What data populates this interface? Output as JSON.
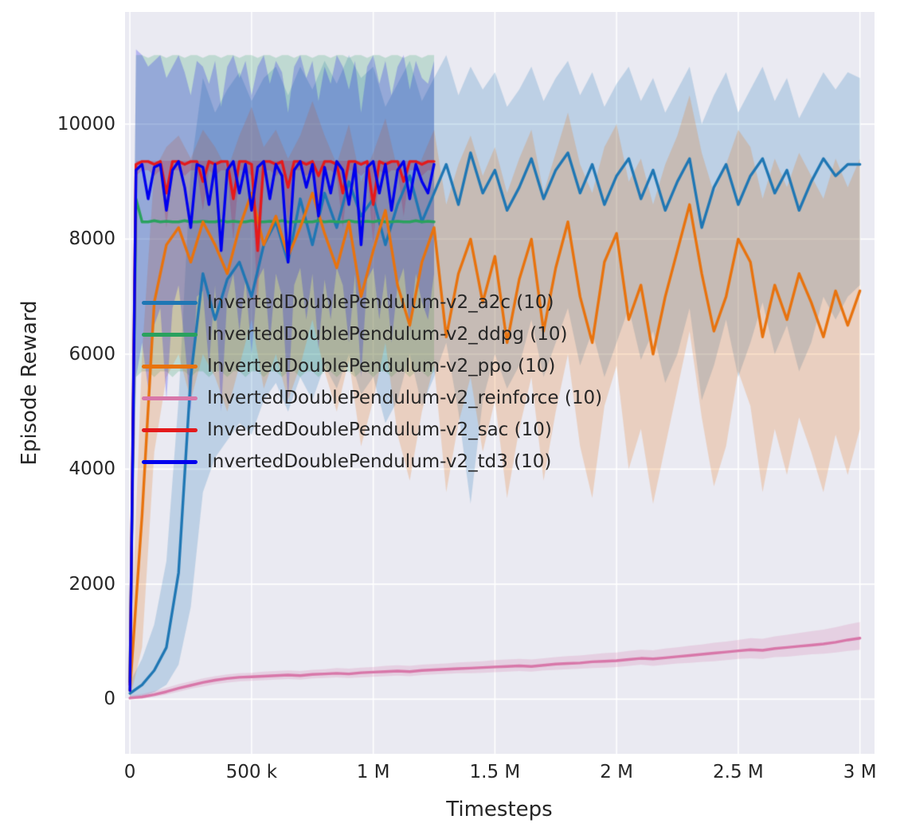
{
  "figure": {
    "background": "#ffffff",
    "plot_background": "#eaeaf2",
    "grid_color": "#ffffff",
    "text_color": "#262626"
  },
  "chart_data": {
    "type": "line",
    "title": "",
    "xlabel": "Timesteps",
    "ylabel": "Episode Reward",
    "x_unit": "timesteps (millions)",
    "xlim": [
      -0.02,
      3.06
    ],
    "ylim": [
      -950,
      11950
    ],
    "grid": true,
    "legend_position": "upper-left-inside",
    "xticks": {
      "values": [
        0,
        0.5,
        1,
        1.5,
        2,
        2.5,
        3
      ],
      "labels": [
        "0",
        "500 k",
        "1 M",
        "1.5 M",
        "2 M",
        "2.5 M",
        "3 M"
      ]
    },
    "yticks": {
      "values": [
        0,
        2000,
        4000,
        6000,
        8000,
        10000
      ],
      "labels": [
        "0",
        "2000",
        "4000",
        "6000",
        "8000",
        "10000"
      ]
    },
    "series": [
      {
        "name": "a2c",
        "label": "InvertedDoublePendulum-v2_a2c (10)",
        "color": "#1f77b4",
        "x_max": 3.0,
        "y": [
          100,
          250,
          500,
          900,
          2200,
          5600,
          7400,
          6600,
          7300,
          7600,
          7000,
          7900,
          8300,
          7600,
          8700,
          7900,
          8800,
          8200,
          9000,
          8400,
          8700,
          7900,
          8600,
          9100,
          8300,
          8800,
          9300,
          8600,
          9500,
          8800,
          9200,
          8500,
          8900,
          9400,
          8700,
          9200,
          9500,
          8800,
          9300,
          8600,
          9100,
          9400,
          8700,
          9200,
          8500,
          9000,
          9400,
          8200,
          8900,
          9300,
          8600,
          9100,
          9400,
          8800,
          9200,
          8500,
          9000,
          9400,
          9100,
          9300,
          9300
        ],
        "band_lo": [
          0,
          50,
          120,
          250,
          600,
          1600,
          3600,
          4200,
          4500,
          4800,
          4600,
          5200,
          5500,
          5000,
          5600,
          5200,
          5800,
          5400,
          6000,
          5300,
          5600,
          4800,
          5200,
          6000,
          5100,
          5600,
          6200,
          5000,
          3400,
          5200,
          6000,
          5400,
          5800,
          6600,
          5600,
          6200,
          6800,
          5800,
          6400,
          5600,
          6200,
          6800,
          5900,
          6400,
          5500,
          6000,
          6800,
          5200,
          5800,
          6600,
          5600,
          6200,
          6900,
          6000,
          6500,
          5700,
          6200,
          7000,
          6600,
          7000,
          7200
        ],
        "band_hi": [
          300,
          700,
          1300,
          2400,
          5200,
          9200,
          10800,
          10200,
          10600,
          10900,
          10400,
          10800,
          11000,
          10500,
          11000,
          10600,
          11100,
          10700,
          11200,
          10800,
          11000,
          10300,
          10700,
          11100,
          10400,
          10800,
          11200,
          10500,
          11000,
          10600,
          10900,
          10300,
          10600,
          11000,
          10400,
          10800,
          11100,
          10500,
          10900,
          10300,
          10700,
          11000,
          10400,
          10800,
          10200,
          10600,
          11000,
          10000,
          10500,
          10900,
          10200,
          10600,
          11000,
          10400,
          10800,
          10100,
          10500,
          10900,
          10600,
          10900,
          10800
        ]
      },
      {
        "name": "ddpg",
        "label": "InvertedDoublePendulum-v2_ddpg (10)",
        "color": "#2aa15e",
        "x_max": 1.25,
        "y": [
          300,
          8700,
          8300,
          8300,
          8320,
          8300,
          8310,
          8300,
          8300,
          8320,
          8300,
          8300,
          8310,
          8300,
          8300,
          8320,
          8300,
          8310,
          8300,
          8300,
          8320,
          8300,
          8300,
          8310,
          8300,
          8320,
          8300,
          8300,
          8310,
          8300,
          8300,
          8320,
          8300,
          8310,
          8300,
          8300,
          8320,
          8300,
          8300,
          8310,
          8300,
          8320,
          8300,
          8300,
          8310,
          8300,
          8300,
          8320,
          8300,
          8310,
          8300
        ],
        "band_lo": [
          0,
          5600,
          5700,
          5700,
          5600,
          5700,
          5700,
          5600,
          5700,
          5700,
          5600,
          5700,
          5700,
          5600,
          5700,
          5700,
          5600,
          5700,
          5700,
          5600,
          5700,
          5700,
          5600,
          5700,
          5700,
          5600,
          5700,
          5700,
          5600,
          5700,
          5700,
          5600,
          5700,
          5700,
          5600,
          5700,
          5700,
          5600,
          5700,
          5700,
          5600,
          5700,
          5700,
          5600,
          5700,
          5700,
          5600,
          5700,
          5700,
          5600,
          5700
        ],
        "band_hi": [
          900,
          11200,
          11200,
          11150,
          11200,
          11200,
          11150,
          11200,
          11200,
          11150,
          11200,
          11200,
          11150,
          11200,
          11200,
          11150,
          11200,
          11200,
          11150,
          11200,
          11200,
          11150,
          11200,
          11200,
          11150,
          11200,
          11200,
          11150,
          11200,
          11200,
          11150,
          11200,
          11200,
          11150,
          11200,
          11200,
          11150,
          11200,
          11200,
          11150,
          11200,
          11200,
          11150,
          11200,
          11200,
          11150,
          11200,
          11200,
          11150,
          11200,
          11200
        ]
      },
      {
        "name": "ppo",
        "label": "InvertedDoublePendulum-v2_ppo (10)",
        "color": "#e8730e",
        "x_max": 3.0,
        "y": [
          150,
          3200,
          6900,
          7900,
          8200,
          7600,
          8300,
          7900,
          7400,
          8200,
          8800,
          7900,
          8400,
          7700,
          8200,
          8800,
          8100,
          7500,
          8300,
          7000,
          7800,
          8500,
          7200,
          6500,
          7600,
          8200,
          6300,
          7400,
          8000,
          6900,
          7700,
          6200,
          7300,
          8000,
          6400,
          7500,
          8300,
          7000,
          6200,
          7600,
          8100,
          6600,
          7200,
          6000,
          7000,
          7800,
          8600,
          7400,
          6400,
          7000,
          8000,
          7600,
          6300,
          7200,
          6600,
          7400,
          6900,
          6300,
          7100,
          6500,
          7100
        ],
        "band_lo": [
          0,
          900,
          4300,
          5600,
          6000,
          5200,
          6000,
          5600,
          5000,
          5800,
          6600,
          5400,
          6000,
          5200,
          5800,
          6600,
          5700,
          5000,
          5900,
          4400,
          5200,
          6200,
          4600,
          3800,
          5000,
          5800,
          3600,
          4800,
          5600,
          4300,
          5200,
          3500,
          4700,
          5600,
          3800,
          5000,
          6000,
          4400,
          3500,
          5100,
          5800,
          4000,
          4700,
          3400,
          4400,
          5400,
          6400,
          4900,
          3700,
          4400,
          5700,
          5100,
          3600,
          4700,
          3900,
          4900,
          4300,
          3600,
          4600,
          3900,
          4700
        ],
        "band_hi": [
          400,
          6000,
          9200,
          9600,
          9800,
          9400,
          9900,
          9600,
          9200,
          9800,
          10300,
          9600,
          9900,
          9400,
          9800,
          10400,
          9800,
          9300,
          10000,
          9000,
          9500,
          10100,
          9200,
          8700,
          9400,
          9900,
          8600,
          9300,
          9800,
          9100,
          9600,
          8800,
          9400,
          9900,
          8800,
          9500,
          10200,
          9300,
          8800,
          9600,
          10000,
          9000,
          9400,
          8600,
          9300,
          9800,
          10500,
          9500,
          8800,
          9300,
          9900,
          9600,
          8700,
          9400,
          8900,
          9500,
          9100,
          8700,
          9400,
          8900,
          9400
        ]
      },
      {
        "name": "reinforce",
        "label": "InvertedDoublePendulum-v2_reinforce (10)",
        "color": "#d877a9",
        "x_max": 3.0,
        "y": [
          20,
          40,
          80,
          130,
          190,
          240,
          290,
          330,
          360,
          380,
          390,
          400,
          410,
          420,
          410,
          430,
          440,
          450,
          440,
          460,
          470,
          480,
          490,
          480,
          500,
          510,
          520,
          530,
          540,
          550,
          560,
          570,
          580,
          570,
          590,
          610,
          620,
          630,
          650,
          660,
          670,
          690,
          710,
          700,
          720,
          740,
          760,
          780,
          800,
          820,
          840,
          860,
          850,
          880,
          900,
          920,
          940,
          960,
          990,
          1030,
          1060
        ],
        "band_lo": [
          0,
          10,
          40,
          80,
          130,
          180,
          220,
          260,
          290,
          310,
          320,
          330,
          340,
          350,
          340,
          360,
          370,
          380,
          370,
          380,
          390,
          400,
          410,
          400,
          420,
          430,
          440,
          450,
          450,
          460,
          470,
          480,
          490,
          480,
          500,
          510,
          520,
          530,
          540,
          550,
          560,
          580,
          600,
          580,
          600,
          620,
          630,
          650,
          660,
          680,
          700,
          710,
          700,
          730,
          740,
          760,
          780,
          790,
          810,
          840,
          860
        ],
        "band_hi": [
          60,
          90,
          140,
          200,
          260,
          310,
          360,
          400,
          430,
          450,
          460,
          480,
          490,
          500,
          490,
          510,
          520,
          540,
          530,
          550,
          560,
          580,
          590,
          580,
          600,
          610,
          620,
          640,
          650,
          660,
          680,
          690,
          700,
          690,
          710,
          730,
          750,
          760,
          780,
          800,
          810,
          840,
          860,
          850,
          880,
          900,
          930,
          950,
          980,
          1000,
          1030,
          1060,
          1050,
          1090,
          1120,
          1150,
          1180,
          1210,
          1250,
          1300,
          1340
        ]
      },
      {
        "name": "sac",
        "label": "InvertedDoublePendulum-v2_sac (10)",
        "color": "#e41a1c",
        "x_max": 1.25,
        "y": [
          250,
          9300,
          9350,
          9350,
          9300,
          9350,
          8800,
          9350,
          9350,
          9300,
          9350,
          9350,
          9000,
          9350,
          9300,
          9350,
          9350,
          8700,
          9350,
          9350,
          9300,
          7800,
          9350,
          9350,
          9300,
          9350,
          8900,
          9350,
          9350,
          9300,
          9350,
          9100,
          9350,
          9350,
          9300,
          8800,
          9350,
          9350,
          9300,
          9350,
          8600,
          9350,
          9300,
          9350,
          9350,
          9000,
          9350,
          9350,
          9300,
          9350,
          9350
        ],
        "band_lo": [
          0,
          9100,
          9200,
          9200,
          9100,
          9200,
          8200,
          9200,
          9200,
          9100,
          9200,
          9200,
          8500,
          9200,
          9100,
          9200,
          9200,
          8000,
          9200,
          9200,
          9100,
          6800,
          9200,
          9200,
          9100,
          9200,
          8300,
          9200,
          9200,
          9100,
          9200,
          8600,
          9200,
          9200,
          9100,
          8200,
          9200,
          9200,
          9100,
          9200,
          7900,
          9200,
          9100,
          9200,
          9200,
          8400,
          9200,
          9200,
          9100,
          9200,
          9200
        ],
        "band_hi": [
          800,
          9360,
          9360,
          9360,
          9360,
          9360,
          9360,
          9360,
          9360,
          9360,
          9360,
          9360,
          9360,
          9360,
          9360,
          9360,
          9360,
          9360,
          9360,
          9360,
          9360,
          9360,
          9360,
          9360,
          9360,
          9360,
          9360,
          9360,
          9360,
          9360,
          9360,
          9360,
          9360,
          9360,
          9360,
          9360,
          9360,
          9360,
          9360,
          9360,
          9360,
          9360,
          9360,
          9360,
          9360,
          9360,
          9360,
          9360,
          9360,
          9360,
          9360
        ]
      },
      {
        "name": "td3",
        "label": "InvertedDoublePendulum-v2_td3 (10)",
        "color": "#0000ee",
        "x_max": 1.25,
        "y": [
          150,
          9200,
          9300,
          8700,
          9250,
          9300,
          8500,
          9200,
          9350,
          8900,
          8200,
          9300,
          9250,
          8600,
          9300,
          7800,
          9200,
          9350,
          8800,
          9300,
          8500,
          9250,
          9350,
          8700,
          9300,
          9100,
          7600,
          9200,
          9350,
          8900,
          9300,
          8400,
          9250,
          8800,
          9350,
          9200,
          8600,
          9300,
          7900,
          9250,
          9350,
          8800,
          9300,
          8500,
          9200,
          9350,
          8700,
          9300,
          9000,
          8800,
          9300
        ],
        "band_lo": [
          0,
          5600,
          6200,
          5400,
          6500,
          6800,
          5200,
          6800,
          7200,
          6200,
          5000,
          7000,
          7100,
          5800,
          7200,
          5000,
          7000,
          7400,
          6400,
          7300,
          6000,
          7300,
          7500,
          6200,
          7400,
          7000,
          5200,
          7200,
          7500,
          6600,
          7400,
          6100,
          7300,
          6600,
          7500,
          7200,
          6200,
          7400,
          5600,
          7300,
          7500,
          6600,
          7400,
          6200,
          7200,
          7500,
          6400,
          7400,
          6900,
          6600,
          7400
        ],
        "band_hi": [
          500,
          11300,
          11200,
          11000,
          11100,
          11200,
          10800,
          11000,
          11200,
          10900,
          10500,
          11100,
          11000,
          10700,
          11100,
          10300,
          11000,
          11200,
          10800,
          11100,
          10500,
          11000,
          11200,
          10700,
          11100,
          10900,
          10200,
          11000,
          11200,
          10800,
          11100,
          10400,
          11000,
          10700,
          11200,
          11000,
          10600,
          11100,
          10200,
          11000,
          11200,
          10700,
          11100,
          10500,
          11000,
          11200,
          10600,
          11100,
          10800,
          10700,
          11100
        ]
      }
    ]
  }
}
